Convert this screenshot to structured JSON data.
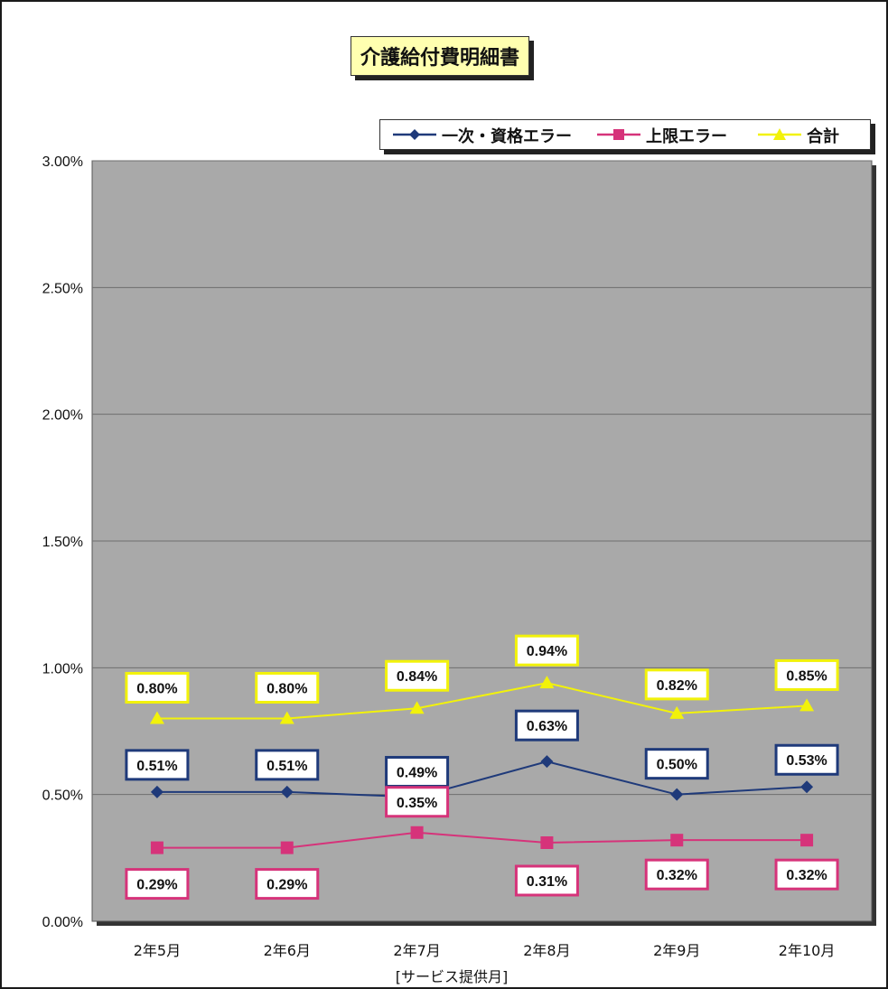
{
  "chart_data": {
    "type": "line",
    "title": "介護給付費明細書",
    "xlabel": "[サービス提供月]",
    "ylabel": "",
    "ylim": [
      0,
      3.0
    ],
    "yticks": [
      0,
      0.5,
      1.0,
      1.5,
      2.0,
      2.5,
      3.0
    ],
    "ytick_labels": [
      "0.00%",
      "0.50%",
      "1.00%",
      "1.50%",
      "2.00%",
      "2.50%",
      "3.00%"
    ],
    "categories": [
      "2年5月",
      "2年6月",
      "2年7月",
      "2年8月",
      "2年9月",
      "2年10月"
    ],
    "grid": true,
    "legend_position": "top-right",
    "series": [
      {
        "name": "一次・資格エラー",
        "color": "#1f3a7a",
        "marker": "diamond",
        "values": [
          0.51,
          0.51,
          0.49,
          0.63,
          0.5,
          0.53
        ],
        "labels": [
          "0.51%",
          "0.51%",
          "0.49%",
          "0.63%",
          "0.50%",
          "0.53%"
        ]
      },
      {
        "name": "上限エラー",
        "color": "#d6337a",
        "marker": "square",
        "values": [
          0.29,
          0.29,
          0.35,
          0.31,
          0.32,
          0.32
        ],
        "labels": [
          "0.29%",
          "0.29%",
          "0.35%",
          "0.31%",
          "0.32%",
          "0.32%"
        ]
      },
      {
        "name": "合計",
        "color": "#f2f20a",
        "marker": "triangle",
        "values": [
          0.8,
          0.8,
          0.84,
          0.94,
          0.82,
          0.85
        ],
        "labels": [
          "0.80%",
          "0.80%",
          "0.84%",
          "0.94%",
          "0.82%",
          "0.85%"
        ]
      }
    ],
    "colors": {
      "plot_background": "#a9a9a9",
      "gridline": "#6e6e6e",
      "title_background": "#ffffb0"
    }
  }
}
